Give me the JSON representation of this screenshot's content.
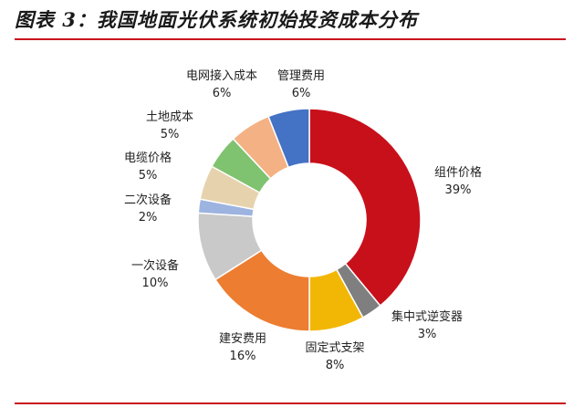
{
  "title": "图表 3：我国地面光伏系统初始投资成本分布",
  "colors": {
    "rule": "#c9151e"
  },
  "chart_data": {
    "type": "pie",
    "donut": true,
    "start": "top-clockwise",
    "legend": "none",
    "slices": [
      {
        "label": "组件价格",
        "value": 39,
        "text": "39%",
        "color": "#c8101b"
      },
      {
        "label": "集中式逆变器",
        "value": 3,
        "text": "3%",
        "color": "#7f7f7f"
      },
      {
        "label": "固定式支架",
        "value": 8,
        "text": "8%",
        "color": "#f2b705"
      },
      {
        "label": "建安费用",
        "value": 16,
        "text": "16%",
        "color": "#ed7d31"
      },
      {
        "label": "一次设备",
        "value": 10,
        "text": "10%",
        "color": "#c9c9c9"
      },
      {
        "label": "二次设备",
        "value": 2,
        "text": "2%",
        "color": "#9db3e0"
      },
      {
        "label": "电缆价格",
        "value": 5,
        "text": "5%",
        "color": "#e6d3ae"
      },
      {
        "label": "土地成本",
        "value": 5,
        "text": "5%",
        "color": "#7fc26f"
      },
      {
        "label": "电网接入成本",
        "value": 6,
        "text": "6%",
        "color": "#f4b183"
      },
      {
        "label": "管理费用",
        "value": 6,
        "text": "6%",
        "color": "#4472c4"
      }
    ]
  }
}
